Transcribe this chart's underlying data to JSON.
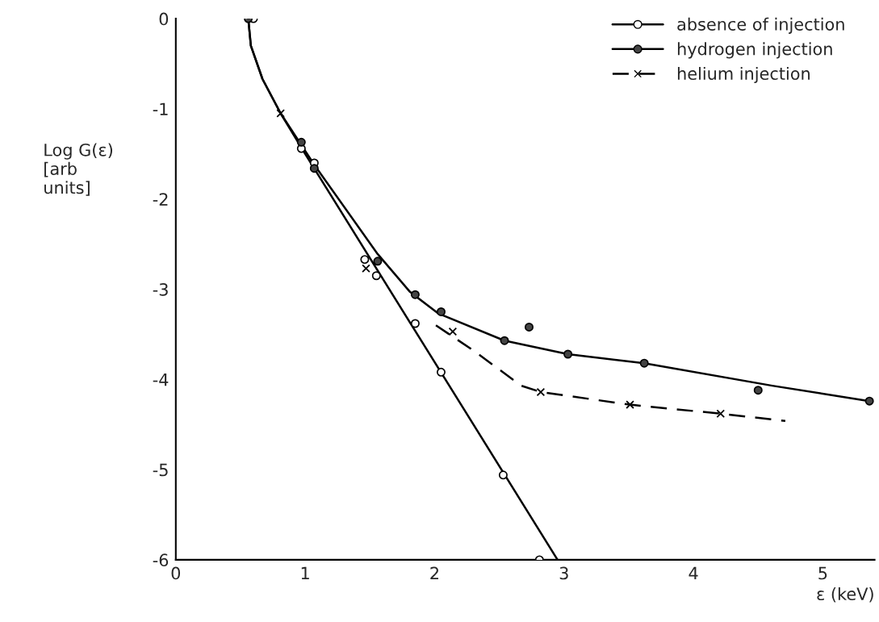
{
  "chart_data": {
    "type": "line",
    "xlabel": "ε (keV)",
    "ylabel": "Log G(ε)\n[arb\nunits]",
    "xlim": [
      0,
      5.4
    ],
    "ylim": [
      -6,
      0
    ],
    "xticks": [
      0,
      1,
      2,
      3,
      4,
      5
    ],
    "yticks": [
      0,
      -1,
      -2,
      -3,
      -4,
      -5,
      -6
    ],
    "grid": false,
    "legend": "top right",
    "series": [
      {
        "type": "scatter",
        "marker": "circle",
        "color": "#ffffff",
        "x": [
          0.6,
          0.97,
          1.07,
          1.46,
          1.55,
          1.85,
          2.05,
          2.53,
          2.81
        ],
        "values": [
          0,
          -1.44,
          -1.6,
          -2.67,
          -2.85,
          -3.38,
          -3.92,
          -5.06,
          -6.0
        ]
      },
      {
        "type": "scatter",
        "marker": "circle",
        "color": "#444444",
        "x": [
          0.56,
          0.97,
          1.07,
          1.56,
          1.85,
          2.05,
          2.54,
          2.73,
          3.03,
          3.62,
          4.5,
          5.36
        ],
        "values": [
          0,
          -1.37,
          -1.66,
          -2.69,
          -3.06,
          -3.25,
          -3.57,
          -3.42,
          -3.72,
          -3.82,
          -4.12,
          -4.24
        ]
      },
      {
        "type": "scatter",
        "marker": "cross",
        "color": "#000000",
        "x": [
          0.81,
          1.47,
          2.14,
          2.82,
          3.51,
          4.21
        ],
        "values": [
          -1.05,
          -2.77,
          -3.47,
          -4.14,
          -4.28,
          -4.38
        ]
      },
      {
        "name": "absence of injection",
        "line_style": "solid",
        "color": "#000000",
        "x": [
          0.56,
          0.58,
          0.67,
          0.81,
          1.0,
          2.95
        ],
        "values": [
          0,
          -0.3,
          -0.67,
          -1.05,
          -1.5,
          -6.0
        ]
      },
      {
        "name": "hydrogen injection",
        "line_style": "solid",
        "color": "#000000",
        "x": [
          0.56,
          0.58,
          0.67,
          0.81,
          1.07,
          1.56,
          1.81,
          2.03,
          2.54,
          3.03,
          3.62,
          4.61,
          5.36
        ],
        "values": [
          0,
          -0.3,
          -0.67,
          -1.05,
          -1.62,
          -2.61,
          -3.03,
          -3.27,
          -3.57,
          -3.72,
          -3.82,
          -4.07,
          -4.24
        ]
      },
      {
        "name": "helium injection",
        "line_style": "dashed",
        "color": "#000000",
        "x": [
          2.01,
          2.3,
          2.67,
          2.82,
          3.51,
          4.21,
          4.71
        ],
        "values": [
          -3.4,
          -3.68,
          -4.07,
          -4.14,
          -4.28,
          -4.38,
          -4.46
        ]
      }
    ]
  }
}
